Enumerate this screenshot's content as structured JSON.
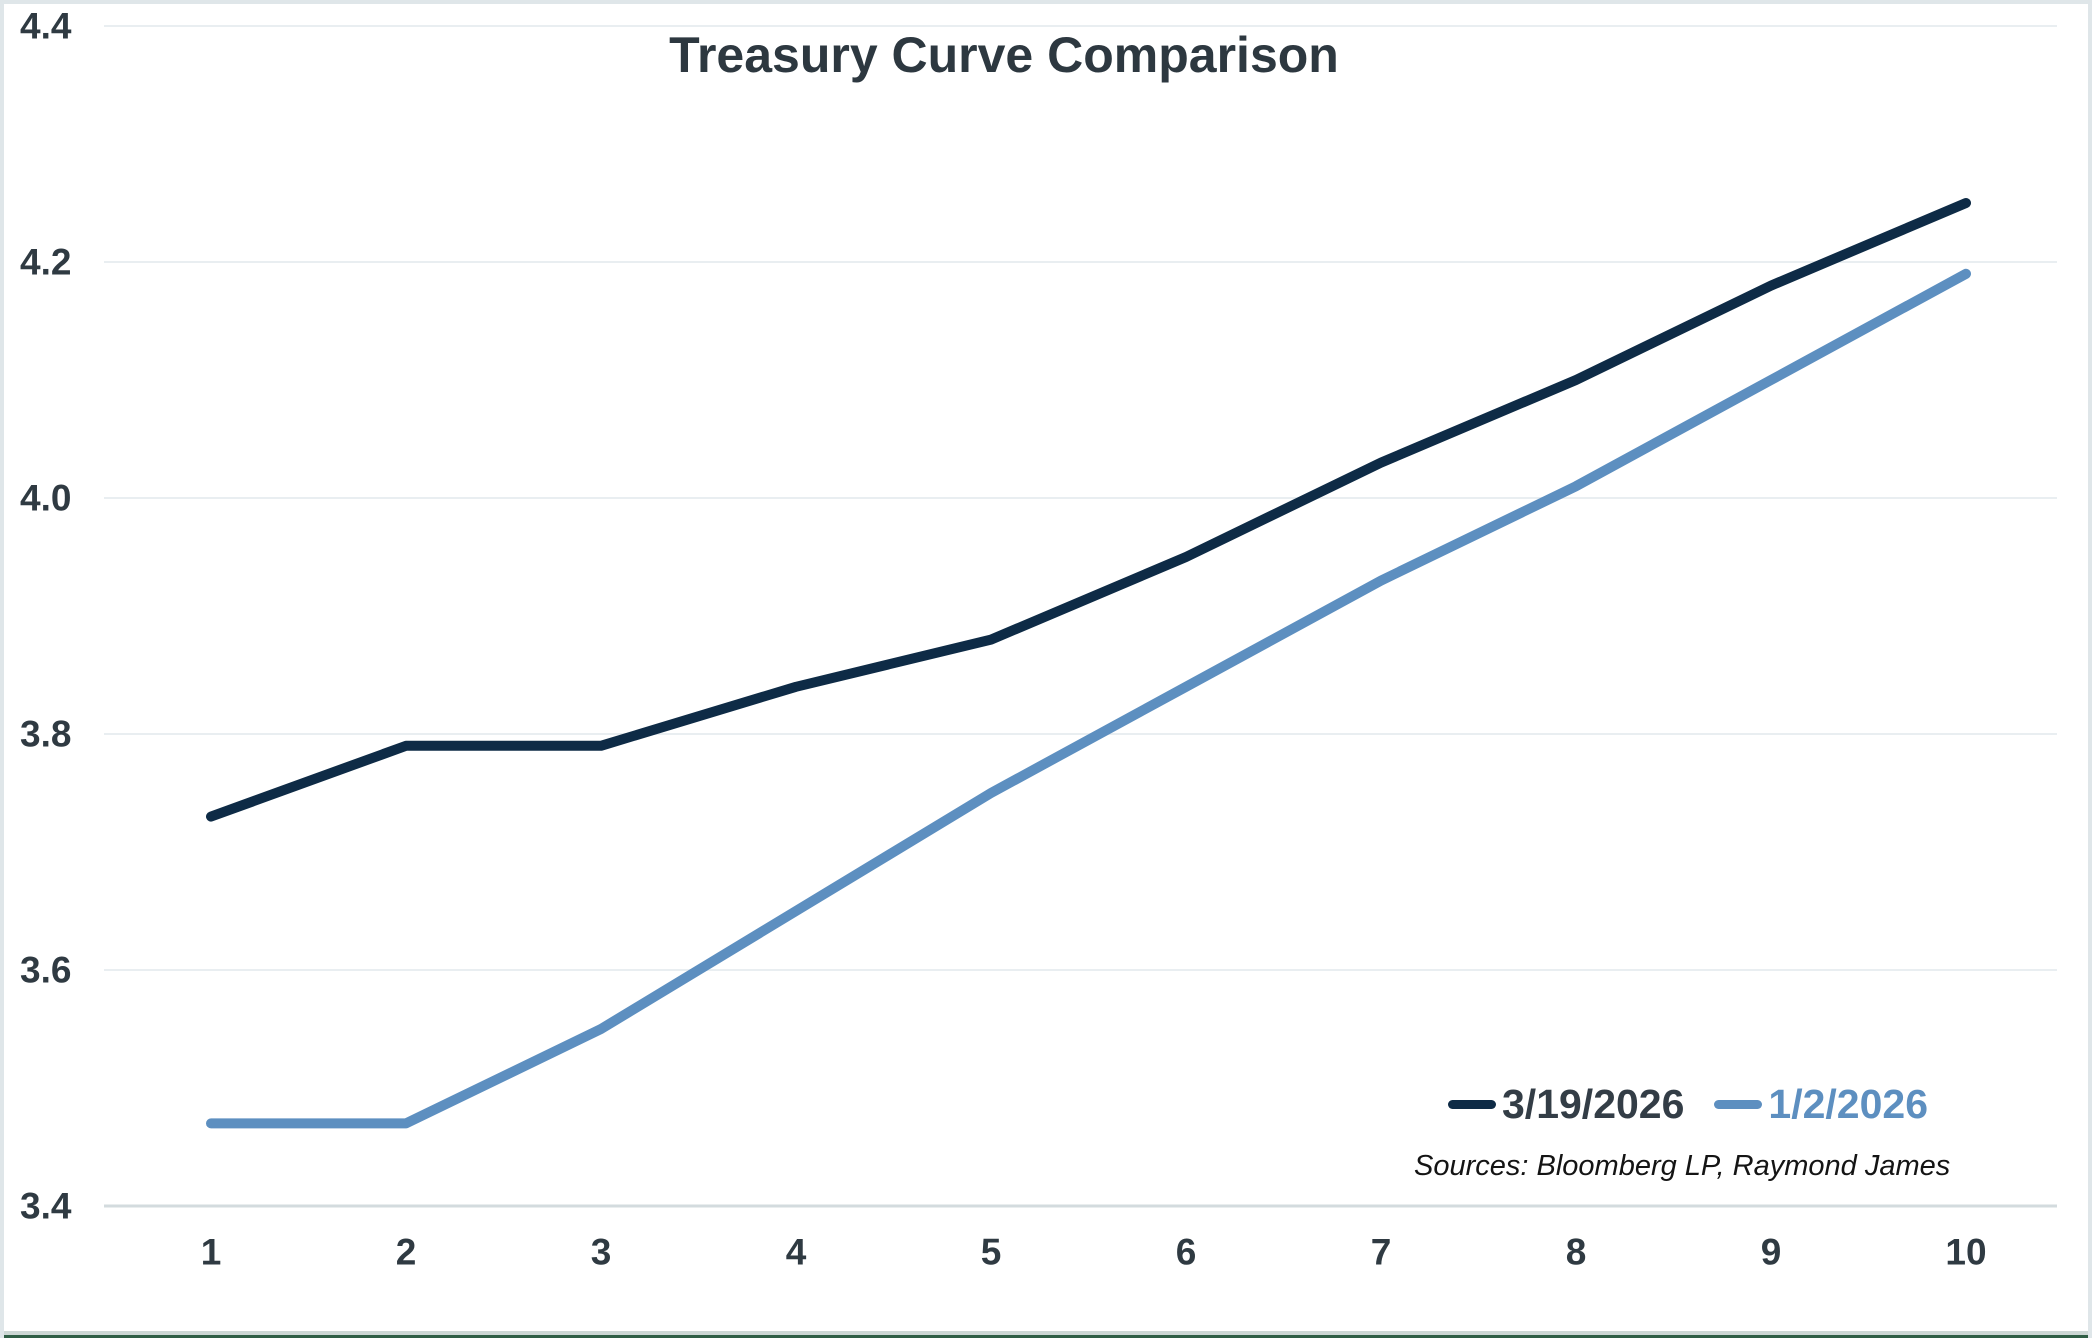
{
  "colors": {
    "series1": "#0e2b46",
    "series2": "#5d8fc0",
    "axis_text": "#2f3a42",
    "legend_dark_text": "#333d46",
    "gridline": "#e9eef1",
    "axis_line": "#d3dbde"
  },
  "chart_data": {
    "type": "line",
    "title": "Treasury Curve Comparison",
    "x": [
      1,
      2,
      3,
      4,
      5,
      6,
      7,
      8,
      9,
      10
    ],
    "series": [
      {
        "name": "3/19/2026",
        "color": "#0e2b46",
        "values": [
          3.73,
          3.79,
          3.79,
          3.84,
          3.88,
          3.95,
          4.03,
          4.1,
          4.18,
          4.25
        ]
      },
      {
        "name": "1/2/2026",
        "color": "#5d8fc0",
        "values": [
          3.47,
          3.47,
          3.55,
          3.65,
          3.75,
          3.84,
          3.93,
          4.01,
          4.1,
          4.19
        ]
      }
    ],
    "ylim": [
      3.4,
      4.4
    ],
    "yticks": [
      3.4,
      3.6,
      3.8,
      4.0,
      4.2,
      4.4
    ],
    "ytick_labels": [
      "3.4",
      "3.6",
      "3.8",
      "4.0",
      "4.2",
      "4.4"
    ],
    "xlabel": "",
    "ylabel": "",
    "grid": "horizontal",
    "legend_position": "inside-bottom-right",
    "source": "Sources: Bloomberg LP, Raymond James"
  }
}
